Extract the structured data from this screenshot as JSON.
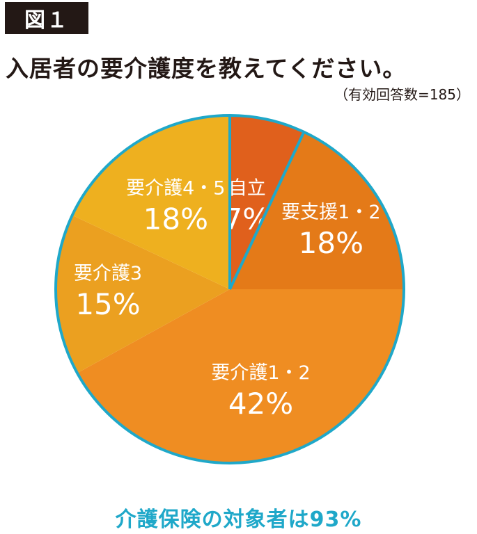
{
  "figure_label": "図１",
  "title": "入居者の要介護度を教えてください。",
  "note": "（有効回答数=185）",
  "footer": "介護保険の対象者は93%",
  "colors": {
    "outline": "#1fa8c9",
    "footer_text": "#1fa8c9",
    "badge_bg": "#231815",
    "text": "#231815"
  },
  "chart_data": {
    "type": "pie",
    "title": "入居者の要介護度を教えてください。",
    "slices": [
      {
        "name": "自立",
        "pct_label": "7%",
        "value": 7,
        "color": "#e0601c"
      },
      {
        "name": "要支援1・2",
        "pct_label": "18%",
        "value": 18,
        "color": "#e47a18"
      },
      {
        "name": "要介護1・2",
        "pct_label": "42%",
        "value": 42,
        "color": "#ef8d22"
      },
      {
        "name": "要介護3",
        "pct_label": "15%",
        "value": 15,
        "color": "#eba020"
      },
      {
        "name": "要介護4・5",
        "pct_label": "18%",
        "value": 18,
        "color": "#eeb01f"
      }
    ]
  }
}
